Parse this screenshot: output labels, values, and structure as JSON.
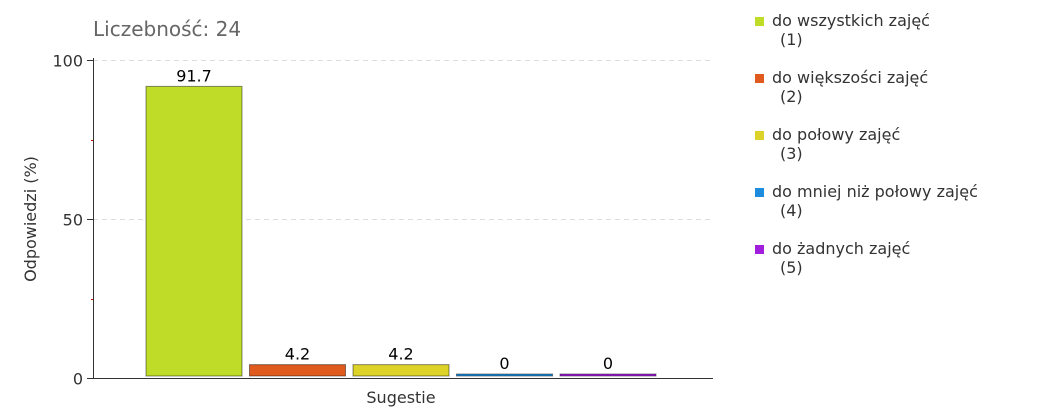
{
  "chart_data": {
    "type": "bar",
    "title": "Liczebność: 24",
    "xlabel": "Sugestie",
    "ylabel": "Odpowiedzi (%)",
    "ylim": [
      0,
      100
    ],
    "yticks": [
      "0",
      "50",
      "100"
    ],
    "category": "Sugestie",
    "series": [
      {
        "name": "do wszystkich zajęć",
        "code": "(1)",
        "value": 91.7,
        "label": "91.7",
        "color": "#BEDC28"
      },
      {
        "name": "do większości zajęć",
        "code": "(2)",
        "value": 4.2,
        "label": "4.2",
        "color": "#E05A1E"
      },
      {
        "name": "do połowy zajęć",
        "code": "(3)",
        "value": 4.2,
        "label": "4.2",
        "color": "#DCD228"
      },
      {
        "name": "do mniej niż połowy zajęć",
        "code": "(4)",
        "value": 0,
        "label": "0",
        "color": "#1E8CDC"
      },
      {
        "name": "do żadnych zajęć",
        "code": "(5)",
        "value": 0,
        "label": "0",
        "color": "#A01EDC"
      }
    ],
    "grid": true,
    "legend_position": "right"
  }
}
